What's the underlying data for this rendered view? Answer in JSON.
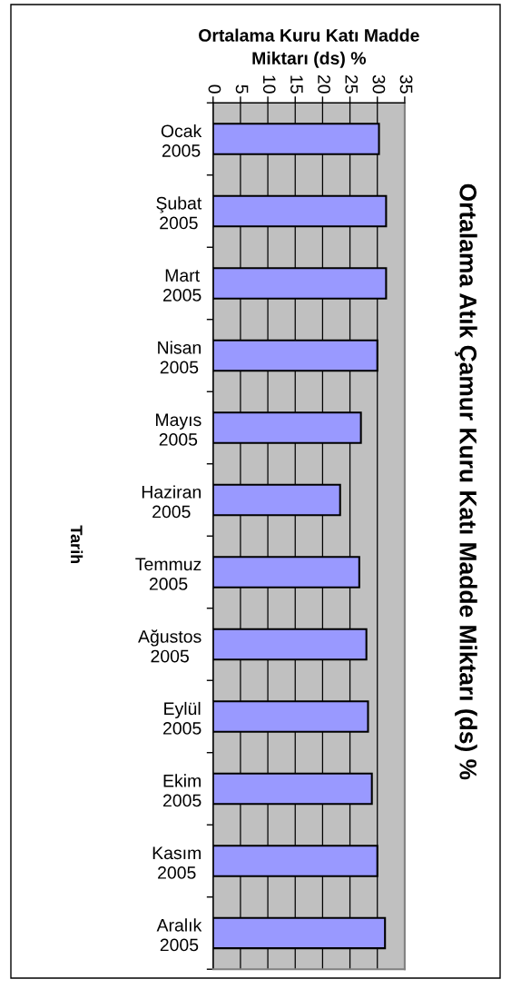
{
  "chart_data": {
    "type": "bar",
    "orientation": "horizontal",
    "title": "Ortalama Atık Çamur Kuru Katı Madde Miktarı (ds) %",
    "xlabel": "Ortalama Kuru Katı Madde\nMiktarı (ds) %",
    "ylabel": "Tarih",
    "categories": [
      "Ocak\n2005",
      "Şubat\n2005",
      "Mart\n2005",
      "Nisan\n2005",
      "Mayıs\n2005",
      "Haziran\n2005",
      "Temmuz\n2005",
      "Ağustos\n2005",
      "Eylül\n2005",
      "Ekim\n2005",
      "Kasım\n2005",
      "Aralık\n2005"
    ],
    "values": [
      30.3,
      31.6,
      31.6,
      30.0,
      27.0,
      23.2,
      26.7,
      28.0,
      28.3,
      29.0,
      30.0,
      31.4
    ],
    "color": "#9999ff",
    "xlim": [
      0,
      35
    ],
    "xticks": [
      0,
      5,
      10,
      15,
      20,
      25,
      30,
      35
    ],
    "grid": "x"
  }
}
